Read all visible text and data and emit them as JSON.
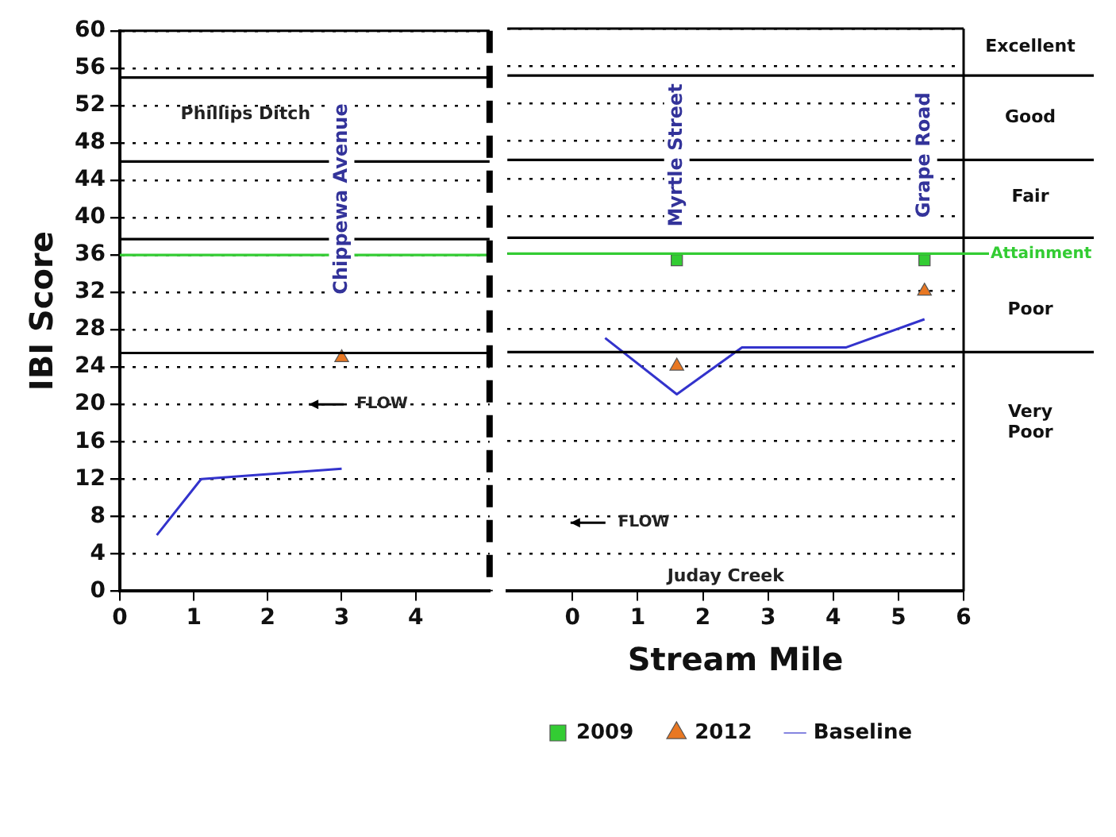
{
  "chart_data": [
    {
      "type": "scatter",
      "ylabel": "IBI Score",
      "xlim": [
        0,
        5
      ],
      "xticks": [
        0,
        1,
        2,
        3,
        4
      ],
      "ylim": [
        0,
        60
      ],
      "yticks": [
        0,
        4,
        8,
        12,
        16,
        20,
        24,
        28,
        32,
        36,
        40,
        44,
        48,
        52,
        56,
        60
      ],
      "grid": "y",
      "series": [
        {
          "type": "scatter",
          "marker": "triangle",
          "color": "#e87722",
          "x": [
            3
          ],
          "values": [
            25
          ]
        },
        {
          "type": "line",
          "marker": "none",
          "color": "#3333cc",
          "x": [
            0.5,
            1.1,
            3
          ],
          "values": [
            6,
            12,
            13.1
          ]
        }
      ],
      "ref_lines": [
        {
          "axis": "y",
          "value": 55,
          "color": "#000000"
        },
        {
          "axis": "y",
          "value": 46,
          "color": "#000000"
        },
        {
          "axis": "y",
          "value": 37.7,
          "color": "#000000"
        },
        {
          "axis": "y",
          "value": 25.5,
          "color": "#000000"
        },
        {
          "axis": "y",
          "value": 36,
          "color": "#33cc33"
        },
        {
          "axis": "x",
          "value": 5,
          "color": "#000000",
          "line_style": "dashed"
        }
      ],
      "annotations": [
        "Phillips Ditch",
        "FLOW",
        "Chippewa Avenue"
      ]
    },
    {
      "type": "scatter",
      "xlabel": "Stream Mile",
      "xlim": [
        -1,
        6
      ],
      "xticks": [
        0,
        1,
        2,
        3,
        4,
        5,
        6
      ],
      "ylim": [
        0,
        60
      ],
      "yticks": [
        0,
        4,
        8,
        12,
        16,
        20,
        24,
        28,
        32,
        36,
        40,
        44,
        48,
        52,
        56,
        60
      ],
      "grid": "y",
      "tick_labels": "x",
      "legend": "bottom",
      "series": [
        {
          "name": "2009",
          "type": "scatter",
          "marker": "square",
          "color": "#33cc33",
          "x": [
            1.6,
            5.4
          ],
          "values": [
            35.3,
            35.3
          ]
        },
        {
          "name": "2012",
          "type": "scatter",
          "marker": "triangle",
          "color": "#e87722",
          "x": [
            1.6,
            5.4
          ],
          "values": [
            24,
            32
          ]
        },
        {
          "name": "Baseline",
          "type": "line",
          "marker": "none",
          "color": "#3333cc",
          "x": [
            0.5,
            1.6,
            2.6,
            4.2,
            5.4
          ],
          "values": [
            27,
            21,
            26,
            26,
            29
          ]
        }
      ],
      "ref_lines": [
        {
          "axis": "y",
          "value": 55,
          "color": "#000000"
        },
        {
          "axis": "y",
          "value": 46,
          "color": "#000000"
        },
        {
          "axis": "y",
          "value": 37.7,
          "color": "#000000"
        },
        {
          "axis": "y",
          "value": 25.5,
          "color": "#000000"
        },
        {
          "axis": "y",
          "value": 36,
          "label": "Attainment",
          "color": "#33cc33"
        }
      ],
      "annotations": [
        "Juday Creek",
        "FLOW",
        "Myrtle Street",
        "Grape Road",
        "Excellent",
        "Good",
        "Fair",
        "Poor",
        "Very Poor"
      ]
    }
  ]
}
